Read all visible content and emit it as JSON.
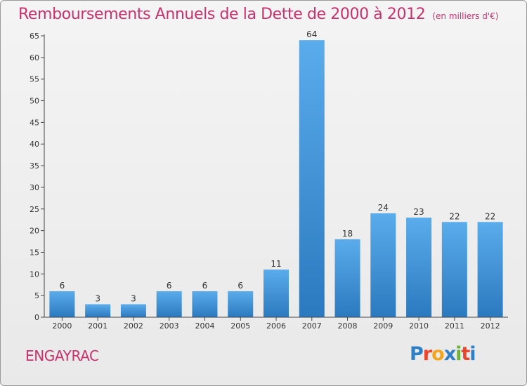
{
  "chart_data": {
    "type": "bar",
    "title": "Remboursements Annuels de la Dette de 2000 à 2012",
    "subtitle": "(en milliers d'€)",
    "categories": [
      "2000",
      "2001",
      "2002",
      "2003",
      "2004",
      "2005",
      "2006",
      "2007",
      "2008",
      "2009",
      "2010",
      "2011",
      "2012"
    ],
    "values": [
      6,
      3,
      3,
      6,
      6,
      6,
      11,
      64,
      18,
      24,
      23,
      22,
      22
    ],
    "data_labels": [
      "6",
      "3",
      "3",
      "6",
      "6",
      "6",
      "11",
      "64",
      "18",
      "24",
      "23",
      "22",
      "22"
    ],
    "ylim": [
      0,
      65
    ],
    "yticks": [
      0,
      5,
      10,
      15,
      20,
      25,
      30,
      35,
      40,
      45,
      50,
      55,
      60,
      65
    ],
    "ytick_labels": [
      "0",
      "5",
      "10",
      "15",
      "20",
      "25",
      "30",
      "35",
      "40",
      "45",
      "50",
      "55",
      "60",
      "65"
    ],
    "xlabel": "",
    "ylabel": "",
    "grid": false,
    "bar_color": "#3b8fd6"
  },
  "footer": {
    "commune": "ENGAYRAC",
    "logo_text": "Proxiti",
    "logo_parts": [
      "P",
      "r",
      "o",
      "x",
      "i",
      "t",
      "i"
    ]
  }
}
